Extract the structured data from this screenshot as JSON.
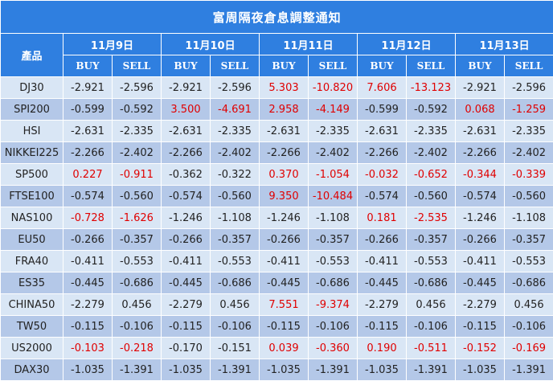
{
  "title": "富周隔夜倉息調整通知",
  "product_header": "產品",
  "buy_label": "BUY",
  "sell_label": "SELL",
  "highlight_color": "#e00000",
  "header_color": "#2f7fe0",
  "dates": [
    "11月9日",
    "11月10日",
    "11月11日",
    "11月12日",
    "11月13日"
  ],
  "rows": [
    {
      "product": "DJ30",
      "cells": [
        {
          "buy": "-2.921",
          "sell": "-2.596",
          "hl": false
        },
        {
          "buy": "-2.921",
          "sell": "-2.596",
          "hl": false
        },
        {
          "buy": "5.303",
          "sell": "-10.820",
          "hl": true
        },
        {
          "buy": "7.606",
          "sell": "-13.123",
          "hl": true
        },
        {
          "buy": "-2.921",
          "sell": "-2.596",
          "hl": false
        }
      ]
    },
    {
      "product": "SPI200",
      "cells": [
        {
          "buy": "-0.599",
          "sell": "-0.592",
          "hl": false
        },
        {
          "buy": "3.500",
          "sell": "-4.691",
          "hl": true
        },
        {
          "buy": "2.958",
          "sell": "-4.149",
          "hl": true
        },
        {
          "buy": "-0.599",
          "sell": "-0.592",
          "hl": false
        },
        {
          "buy": "0.068",
          "sell": "-1.259",
          "hl": true
        }
      ]
    },
    {
      "product": "HSI",
      "cells": [
        {
          "buy": "-2.631",
          "sell": "-2.335",
          "hl": false
        },
        {
          "buy": "-2.631",
          "sell": "-2.335",
          "hl": false
        },
        {
          "buy": "-2.631",
          "sell": "-2.335",
          "hl": false
        },
        {
          "buy": "-2.631",
          "sell": "-2.335",
          "hl": false
        },
        {
          "buy": "-2.631",
          "sell": "-2.335",
          "hl": false
        }
      ]
    },
    {
      "product": "NIKKEI225",
      "cells": [
        {
          "buy": "-2.266",
          "sell": "-2.402",
          "hl": false
        },
        {
          "buy": "-2.266",
          "sell": "-2.402",
          "hl": false
        },
        {
          "buy": "-2.266",
          "sell": "-2.402",
          "hl": false
        },
        {
          "buy": "-2.266",
          "sell": "-2.402",
          "hl": false
        },
        {
          "buy": "-2.266",
          "sell": "-2.402",
          "hl": false
        }
      ]
    },
    {
      "product": "SP500",
      "cells": [
        {
          "buy": "0.227",
          "sell": "-0.911",
          "hl": true
        },
        {
          "buy": "-0.362",
          "sell": "-0.322",
          "hl": false
        },
        {
          "buy": "0.370",
          "sell": "-1.054",
          "hl": true
        },
        {
          "buy": "-0.032",
          "sell": "-0.652",
          "hl": true
        },
        {
          "buy": "-0.344",
          "sell": "-0.339",
          "hl": true
        }
      ]
    },
    {
      "product": "FTSE100",
      "cells": [
        {
          "buy": "-0.574",
          "sell": "-0.560",
          "hl": false
        },
        {
          "buy": "-0.574",
          "sell": "-0.560",
          "hl": false
        },
        {
          "buy": "9.350",
          "sell": "-10.484",
          "hl": true
        },
        {
          "buy": "-0.574",
          "sell": "-0.560",
          "hl": false
        },
        {
          "buy": "-0.574",
          "sell": "-0.560",
          "hl": false
        }
      ]
    },
    {
      "product": "NAS100",
      "cells": [
        {
          "buy": "-0.728",
          "sell": "-1.626",
          "hl": true
        },
        {
          "buy": "-1.246",
          "sell": "-1.108",
          "hl": false
        },
        {
          "buy": "-1.246",
          "sell": "-1.108",
          "hl": false
        },
        {
          "buy": "0.181",
          "sell": "-2.535",
          "hl": true
        },
        {
          "buy": "-1.246",
          "sell": "-1.108",
          "hl": false
        }
      ]
    },
    {
      "product": "EU50",
      "cells": [
        {
          "buy": "-0.266",
          "sell": "-0.357",
          "hl": false
        },
        {
          "buy": "-0.266",
          "sell": "-0.357",
          "hl": false
        },
        {
          "buy": "-0.266",
          "sell": "-0.357",
          "hl": false
        },
        {
          "buy": "-0.266",
          "sell": "-0.357",
          "hl": false
        },
        {
          "buy": "-0.266",
          "sell": "-0.357",
          "hl": false
        }
      ]
    },
    {
      "product": "FRA40",
      "cells": [
        {
          "buy": "-0.411",
          "sell": "-0.553",
          "hl": false
        },
        {
          "buy": "-0.411",
          "sell": "-0.553",
          "hl": false
        },
        {
          "buy": "-0.411",
          "sell": "-0.553",
          "hl": false
        },
        {
          "buy": "-0.411",
          "sell": "-0.553",
          "hl": false
        },
        {
          "buy": "-0.411",
          "sell": "-0.553",
          "hl": false
        }
      ]
    },
    {
      "product": "ES35",
      "cells": [
        {
          "buy": "-0.445",
          "sell": "-0.686",
          "hl": false
        },
        {
          "buy": "-0.445",
          "sell": "-0.686",
          "hl": false
        },
        {
          "buy": "-0.445",
          "sell": "-0.686",
          "hl": false
        },
        {
          "buy": "-0.445",
          "sell": "-0.686",
          "hl": false
        },
        {
          "buy": "-0.445",
          "sell": "-0.686",
          "hl": false
        }
      ]
    },
    {
      "product": "CHINA50",
      "cells": [
        {
          "buy": "-2.279",
          "sell": "0.456",
          "hl": false
        },
        {
          "buy": "-2.279",
          "sell": "0.456",
          "hl": false
        },
        {
          "buy": "7.551",
          "sell": "-9.374",
          "hl": true
        },
        {
          "buy": "-2.279",
          "sell": "0.456",
          "hl": false
        },
        {
          "buy": "-2.279",
          "sell": "0.456",
          "hl": false
        }
      ]
    },
    {
      "product": "TW50",
      "cells": [
        {
          "buy": "-0.115",
          "sell": "-0.106",
          "hl": false
        },
        {
          "buy": "-0.115",
          "sell": "-0.106",
          "hl": false
        },
        {
          "buy": "-0.115",
          "sell": "-0.106",
          "hl": false
        },
        {
          "buy": "-0.115",
          "sell": "-0.106",
          "hl": false
        },
        {
          "buy": "-0.115",
          "sell": "-0.106",
          "hl": false
        }
      ]
    },
    {
      "product": "US2000",
      "cells": [
        {
          "buy": "-0.103",
          "sell": "-0.218",
          "hl": true
        },
        {
          "buy": "-0.170",
          "sell": "-0.151",
          "hl": false
        },
        {
          "buy": "0.039",
          "sell": "-0.360",
          "hl": true
        },
        {
          "buy": "0.190",
          "sell": "-0.511",
          "hl": true
        },
        {
          "buy": "-0.152",
          "sell": "-0.169",
          "hl": true
        }
      ]
    },
    {
      "product": "DAX30",
      "cells": [
        {
          "buy": "-1.035",
          "sell": "-1.391",
          "hl": false
        },
        {
          "buy": "-1.035",
          "sell": "-1.391",
          "hl": false
        },
        {
          "buy": "-1.035",
          "sell": "-1.391",
          "hl": false
        },
        {
          "buy": "-1.035",
          "sell": "-1.391",
          "hl": false
        },
        {
          "buy": "-1.035",
          "sell": "-1.391",
          "hl": false
        }
      ]
    }
  ]
}
